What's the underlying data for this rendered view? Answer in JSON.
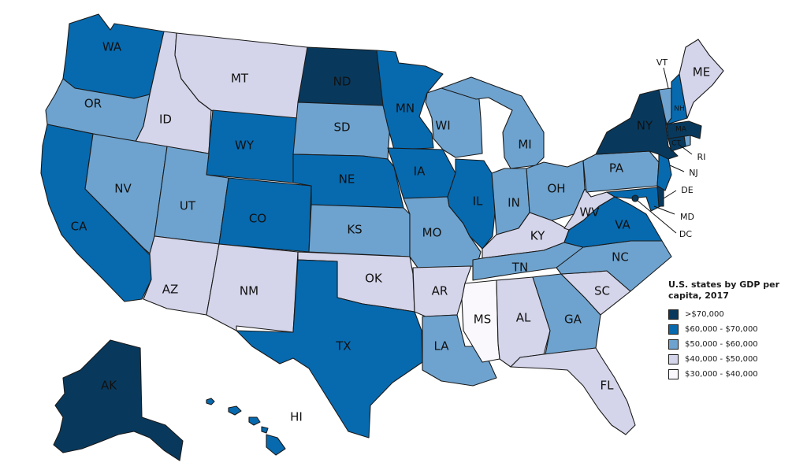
{
  "legend": {
    "title": "U.S. states by GDP per capita, 2017",
    "classes": [
      {
        "label": ">$70,000",
        "color": "#08395d"
      },
      {
        "label": "$60,000 - $70,000",
        "color": "#076aaf"
      },
      {
        "label": "$50,000 - $60,000",
        "color": "#6ea3cf"
      },
      {
        "label": "$40,000 - $50,000",
        "color": "#d4d4ea"
      },
      {
        "label": "$30,000 - $40,000",
        "color": "#faf8fc"
      }
    ]
  },
  "states": {
    "WA": {
      "label": "WA",
      "class": 1
    },
    "OR": {
      "label": "OR",
      "class": 2
    },
    "CA": {
      "label": "CA",
      "class": 1
    },
    "ID": {
      "label": "ID",
      "class": 3
    },
    "NV": {
      "label": "NV",
      "class": 2
    },
    "MT": {
      "label": "MT",
      "class": 3
    },
    "WY": {
      "label": "WY",
      "class": 1
    },
    "UT": {
      "label": "UT",
      "class": 2
    },
    "AZ": {
      "label": "AZ",
      "class": 3
    },
    "CO": {
      "label": "CO",
      "class": 1
    },
    "NM": {
      "label": "NM",
      "class": 3
    },
    "ND": {
      "label": "ND",
      "class": 0
    },
    "SD": {
      "label": "SD",
      "class": 2
    },
    "NE": {
      "label": "NE",
      "class": 1
    },
    "KS": {
      "label": "KS",
      "class": 2
    },
    "OK": {
      "label": "OK",
      "class": 3
    },
    "TX": {
      "label": "TX",
      "class": 1
    },
    "MN": {
      "label": "MN",
      "class": 1
    },
    "IA": {
      "label": "IA",
      "class": 1
    },
    "MO": {
      "label": "MO",
      "class": 2
    },
    "AR": {
      "label": "AR",
      "class": 3
    },
    "LA": {
      "label": "LA",
      "class": 2
    },
    "WI": {
      "label": "WI",
      "class": 2
    },
    "IL": {
      "label": "IL",
      "class": 1
    },
    "MI": {
      "label": "MI",
      "class": 2
    },
    "IN": {
      "label": "IN",
      "class": 2
    },
    "OH": {
      "label": "OH",
      "class": 2
    },
    "KY": {
      "label": "KY",
      "class": 3
    },
    "TN": {
      "label": "TN",
      "class": 2
    },
    "MS": {
      "label": "MS",
      "class": 4
    },
    "AL": {
      "label": "AL",
      "class": 3
    },
    "GA": {
      "label": "GA",
      "class": 2
    },
    "FL": {
      "label": "FL",
      "class": 3
    },
    "SC": {
      "label": "SC",
      "class": 3
    },
    "NC": {
      "label": "NC",
      "class": 2
    },
    "VA": {
      "label": "VA",
      "class": 1
    },
    "WV": {
      "label": "WV",
      "class": 3
    },
    "PA": {
      "label": "PA",
      "class": 2
    },
    "NY": {
      "label": "NY",
      "class": 0
    },
    "NJ": {
      "label": "NJ",
      "class": 1
    },
    "DE": {
      "label": "DE",
      "class": 0
    },
    "MD": {
      "label": "MD",
      "class": 1
    },
    "DC": {
      "label": "DC",
      "class": 0
    },
    "CT": {
      "label": "CT",
      "class": 0
    },
    "RI": {
      "label": "RI",
      "class": 2
    },
    "MA": {
      "label": "MA",
      "class": 0
    },
    "VT": {
      "label": "VT",
      "class": 2
    },
    "NH": {
      "label": "NH",
      "class": 1
    },
    "ME": {
      "label": "ME",
      "class": 3
    },
    "AK": {
      "label": "AK",
      "class": 0
    },
    "HI": {
      "label": "HI",
      "class": 1
    }
  }
}
